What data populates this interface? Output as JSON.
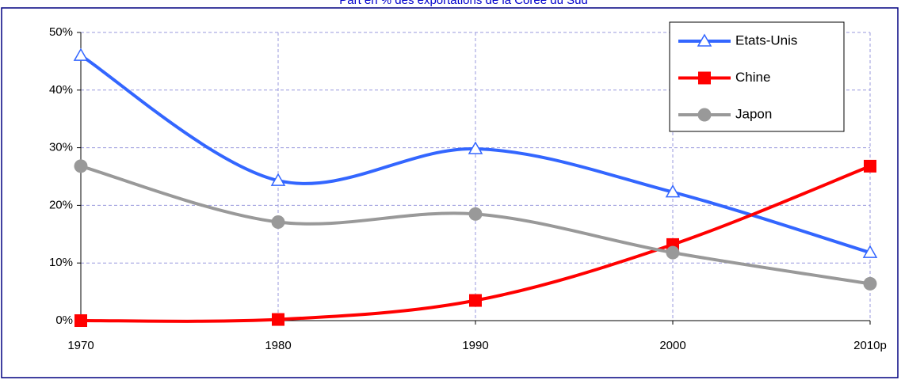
{
  "chart_data": {
    "type": "line",
    "title": "Part en % des exportations de la Corée du Sud",
    "categories": [
      "1970",
      "1980",
      "1990",
      "2000",
      "2010p"
    ],
    "series": [
      {
        "name": "Etats-Unis",
        "color": "#3366ff",
        "marker": "triangle",
        "values": [
          46,
          24.3,
          29.8,
          22.3,
          11.8
        ]
      },
      {
        "name": "Chine",
        "color": "#ff0000",
        "marker": "square",
        "values": [
          0,
          0.2,
          3.5,
          13.2,
          26.8
        ]
      },
      {
        "name": "Japon",
        "color": "#999999",
        "marker": "circle",
        "values": [
          26.8,
          17.1,
          18.5,
          11.8,
          6.4
        ]
      }
    ],
    "ylim": [
      0,
      50
    ],
    "yticks": [
      {
        "value": 0,
        "label": "0%"
      },
      {
        "value": 10,
        "label": "10%"
      },
      {
        "value": 20,
        "label": "20%"
      },
      {
        "value": 30,
        "label": "30%"
      },
      {
        "value": 40,
        "label": "40%"
      },
      {
        "value": 50,
        "label": "50%"
      }
    ],
    "grid": true,
    "legend": "top-right"
  }
}
